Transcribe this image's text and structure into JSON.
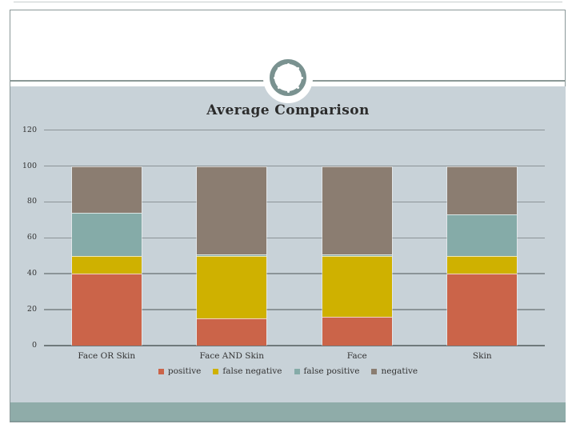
{
  "slide": {
    "border_color": "#8a9899",
    "content_bg_color": "#c8d2d8",
    "accent_band_color": "#8faca9",
    "ornament_ring_color": "#7a9290"
  },
  "chart_data": {
    "type": "bar",
    "stacked": true,
    "title": "Average Comparison",
    "categories": [
      "Face OR Skin",
      "Face AND Skin",
      "Face",
      "Skin"
    ],
    "series": [
      {
        "name": "positive",
        "color": "#cb6449",
        "values": [
          40,
          15,
          16,
          40
        ]
      },
      {
        "name": "false negative",
        "color": "#cfb100",
        "values": [
          10,
          35,
          34,
          10
        ]
      },
      {
        "name": "false positive",
        "color": "#85aba8",
        "values": [
          24,
          1,
          1,
          23
        ]
      },
      {
        "name": "negative",
        "color": "#8b7d71",
        "values": [
          26,
          49,
          49,
          27
        ]
      }
    ],
    "y_ticks": [
      0,
      20,
      40,
      60,
      80,
      100,
      120
    ],
    "ylim": [
      0,
      120
    ],
    "grid": true,
    "legend_position": "bottom",
    "gridline_color": "#8b9497",
    "axis_color": "#6f797c"
  }
}
